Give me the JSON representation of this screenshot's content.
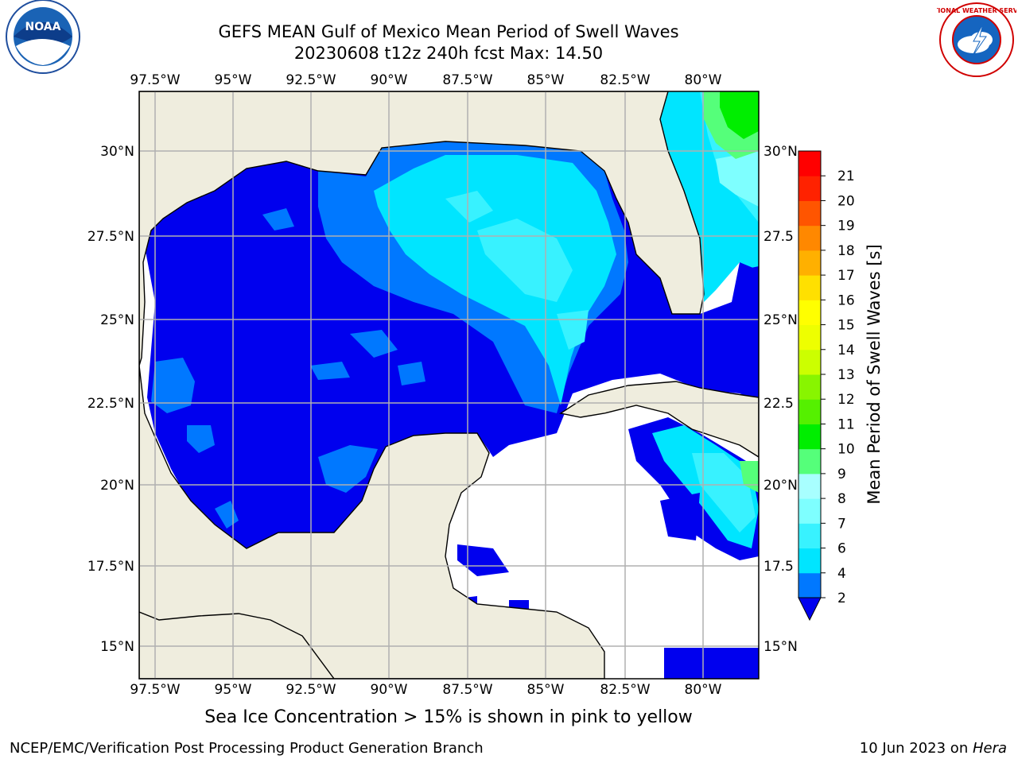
{
  "title_line1": "GEFS MEAN Gulf of Mexico Mean Period of Swell Waves",
  "title_line2": "20230608 t12z 240h fcst   Max: 14.50",
  "map": {
    "lon_labels": [
      "97.5°W",
      "95°W",
      "92.5°W",
      "90°W",
      "87.5°W",
      "85°W",
      "82.5°W",
      "80°W"
    ],
    "lat_labels_left": [
      "30°N",
      "27.5°N",
      "25°N",
      "22.5°N",
      "20°N",
      "17.5°N",
      "15°N"
    ],
    "lat_labels_right": [
      "30°N",
      "27.5",
      "25°N",
      "22.5",
      "20°N",
      "17.5",
      "15°N"
    ],
    "colors": {
      "land": "#efedde",
      "missing": "#ffffff",
      "grid": "#b0b0b0"
    }
  },
  "colorbar": {
    "label": "Mean Period of Swell Waves [s]",
    "ticks": [
      "2",
      "4",
      "6",
      "7",
      "8",
      "9",
      "10",
      "11",
      "12",
      "13",
      "14",
      "15",
      "16",
      "17",
      "18",
      "19",
      "20",
      "21"
    ],
    "colors": [
      "#0000ee",
      "#0078ff",
      "#00e5ff",
      "#38f2ff",
      "#7effff",
      "#a8ffff",
      "#55ff7a",
      "#00ee00",
      "#55f000",
      "#88f500",
      "#ccff00",
      "#eeff00",
      "#ffff00",
      "#ffe000",
      "#ffb000",
      "#ff8800",
      "#ff5500",
      "#ff2200",
      "#ff0000"
    ]
  },
  "note": "Sea Ice Concentration > 15% is shown in pink to yellow",
  "footer_left": "NCEP/EMC/Verification Post Processing Product Generation Branch",
  "footer_right_date": "10 Jun 2023 on ",
  "footer_right_host": "Hera",
  "logos": {
    "noaa_text": "NOAA",
    "nws_text": "NATIONAL WEATHER SERVICE"
  }
}
